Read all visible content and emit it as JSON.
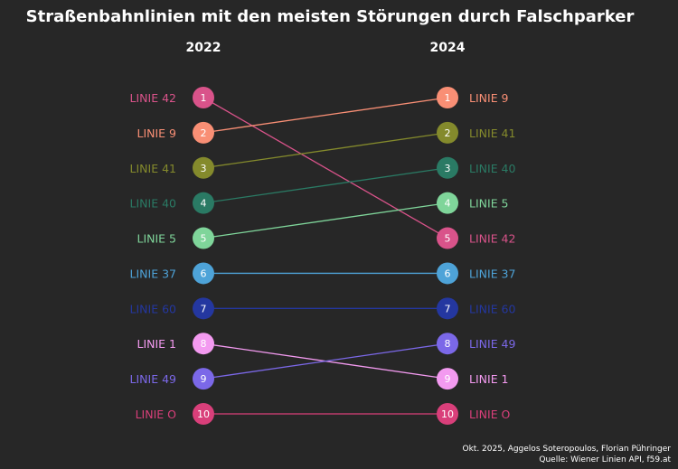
{
  "chart_data": {
    "type": "slope",
    "title": "Straßenbahnlinien mit den meisten Störungen durch Falschparker",
    "columns": [
      "2022",
      "2024"
    ],
    "rank_label_prefix": "LINIE",
    "series": [
      {
        "name": "LINIE 42",
        "color": "#d9538a",
        "rank_2022": 1,
        "rank_2024": 5
      },
      {
        "name": "LINIE 9",
        "color": "#f98f75",
        "rank_2022": 2,
        "rank_2024": 1
      },
      {
        "name": "LINIE 41",
        "color": "#848a2c",
        "rank_2022": 3,
        "rank_2024": 2
      },
      {
        "name": "LINIE 40",
        "color": "#2a7a64",
        "rank_2022": 4,
        "rank_2024": 3
      },
      {
        "name": "LINIE 5",
        "color": "#7fd59a",
        "rank_2022": 5,
        "rank_2024": 4
      },
      {
        "name": "LINIE 37",
        "color": "#4ea3d8",
        "rank_2022": 6,
        "rank_2024": 6
      },
      {
        "name": "LINIE 60",
        "color": "#2437a0",
        "rank_2022": 7,
        "rank_2024": 7
      },
      {
        "name": "LINIE 1",
        "color": "#f39af0",
        "rank_2022": 8,
        "rank_2024": 9
      },
      {
        "name": "LINIE 49",
        "color": "#7b68e8",
        "rank_2022": 9,
        "rank_2024": 8
      },
      {
        "name": "LINIE O",
        "color": "#d93f7a",
        "rank_2022": 10,
        "rank_2024": 10
      }
    ],
    "rank_range": [
      1,
      10
    ]
  },
  "caption": {
    "line1": "Okt. 2025, Aggelos Soteropoulos, Florian Pühringer",
    "line2": "Quelle: Wiener Linien API, f59.at"
  }
}
